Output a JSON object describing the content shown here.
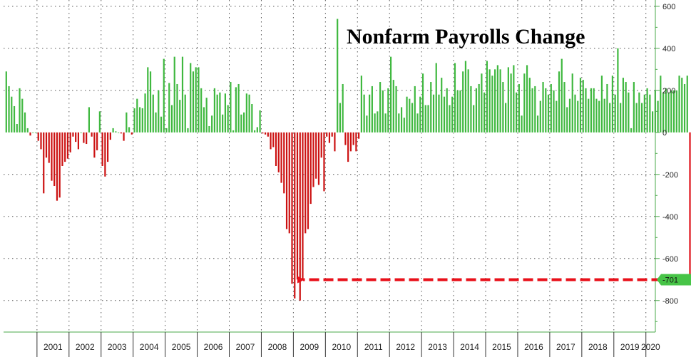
{
  "chart_data": {
    "type": "bar",
    "title": "Nonfarm Payrolls Change",
    "xlabel": "",
    "ylabel": "",
    "ylim": [
      -950,
      630
    ],
    "yticks": [
      600,
      400,
      200,
      0,
      -200,
      -400,
      -600,
      -800
    ],
    "years": [
      "2001",
      "2002",
      "2003",
      "2004",
      "2005",
      "2006",
      "2007",
      "2008",
      "2009",
      "2010",
      "2011",
      "2012",
      "2013",
      "2014",
      "2015",
      "2016",
      "2017",
      "2018",
      "2019",
      "2020"
    ],
    "first_month": "2000-01",
    "grid": true,
    "callout": {
      "label": "-701",
      "value": -701
    },
    "colors": {
      "positive": "#3fb83f",
      "negative": "#cc1111",
      "arrow": "#e8101a",
      "callout_bg": "#47c447",
      "axis": "#4aa84a"
    },
    "series": [
      {
        "values": [
          290,
          220,
          170,
          125,
          40,
          210,
          160,
          95,
          20,
          -15,
          0,
          0,
          -40,
          -80,
          -290,
          -120,
          -145,
          -230,
          -255,
          -325,
          -310,
          -160,
          -140,
          -125,
          -95,
          -20,
          -45,
          -80,
          0,
          -50,
          -55,
          120,
          -20,
          -120,
          -85,
          100,
          -160,
          -210,
          -140,
          -35,
          20,
          5,
          0,
          -5,
          -40,
          95,
          25,
          -10,
          115,
          160,
          120,
          115,
          185,
          310,
          290,
          180,
          95,
          200,
          75,
          350,
          20,
          235,
          130,
          360,
          230,
          155,
          360,
          180,
          20,
          330,
          290,
          310,
          310,
          210,
          120,
          165,
          30,
          80,
          210,
          180,
          190,
          85,
          185,
          130,
          240,
          10,
          215,
          230,
          85,
          95,
          185,
          180,
          135,
          10,
          25,
          105,
          -5,
          -10,
          -20,
          -80,
          -70,
          -160,
          -190,
          -240,
          -290,
          -460,
          -480,
          -720,
          -790,
          -700,
          -800,
          -700,
          -480,
          -460,
          -340,
          -260,
          -220,
          -250,
          -120,
          -280,
          -20,
          -50,
          -20,
          -90,
          540,
          140,
          230,
          -60,
          -140,
          -90,
          -60,
          -90,
          -30,
          270,
          180,
          80,
          180,
          220,
          90,
          100,
          240,
          200,
          90,
          210,
          360,
          250,
          220,
          90,
          120,
          70,
          170,
          160,
          140,
          220,
          90,
          170,
          280,
          130,
          130,
          240,
          180,
          330,
          180,
          260,
          170,
          210,
          130,
          170,
          330,
          200,
          200,
          290,
          340,
          300,
          220,
          130,
          210,
          230,
          280,
          190,
          340,
          300,
          270,
          300,
          320,
          300,
          240,
          140,
          310,
          280,
          320,
          190,
          230,
          80,
          280,
          320,
          260,
          210,
          220,
          80,
          150,
          240,
          210,
          180,
          230,
          200,
          150,
          290,
          350,
          240,
          120,
          160,
          280,
          180,
          150,
          260,
          250,
          210,
          160,
          210,
          210,
          160,
          150,
          270,
          160,
          230,
          140,
          270,
          180,
          400,
          140,
          260,
          240,
          190,
          20,
          240,
          140,
          190,
          140,
          180,
          210,
          180,
          100,
          200,
          150,
          270,
          190,
          210,
          190,
          200,
          200,
          200,
          270,
          260,
          230,
          270,
          -701
        ]
      }
    ]
  }
}
